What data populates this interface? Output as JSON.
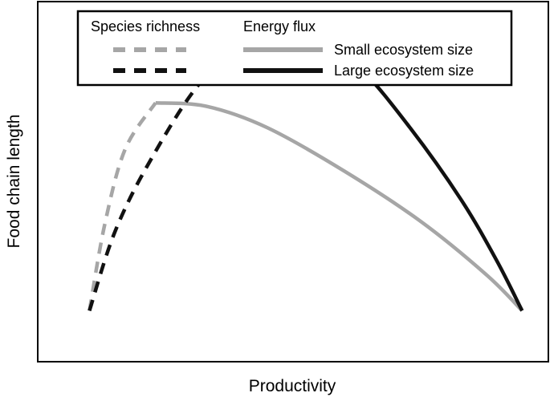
{
  "chart_data": {
    "type": "line",
    "xlabel": "Productivity",
    "ylabel": "Food chain length",
    "x_ticks": "none",
    "y_ticks": "none",
    "grid": false,
    "xlim": [
      0,
      1
    ],
    "ylim": [
      0,
      1
    ],
    "legend": {
      "placement": "top",
      "column_headers": [
        "Species richness",
        "Energy flux"
      ],
      "rows": [
        "Small ecosystem size",
        "Large ecosystem size"
      ]
    },
    "colors": {
      "small": "#a6a6a6",
      "large": "#111111"
    },
    "series": [
      {
        "name": "Small ecosystem size",
        "driver": "Species richness",
        "style": "dashed",
        "color": "#a6a6a6",
        "points": [
          [
            0.1,
            0.14
          ],
          [
            0.13,
            0.38
          ],
          [
            0.17,
            0.59
          ],
          [
            0.23,
            0.72
          ]
        ]
      },
      {
        "name": "Small ecosystem size",
        "driver": "Energy flux",
        "style": "solid",
        "color": "#a6a6a6",
        "points": [
          [
            0.23,
            0.72
          ],
          [
            0.33,
            0.71
          ],
          [
            0.45,
            0.65
          ],
          [
            0.6,
            0.53
          ],
          [
            0.75,
            0.39
          ],
          [
            0.88,
            0.24
          ],
          [
            0.95,
            0.14
          ]
        ]
      },
      {
        "name": "Large ecosystem size",
        "driver": "Species richness",
        "style": "dashed",
        "color": "#111111",
        "points": [
          [
            0.1,
            0.14
          ],
          [
            0.15,
            0.36
          ],
          [
            0.22,
            0.56
          ],
          [
            0.32,
            0.78
          ],
          [
            0.43,
            0.91
          ],
          [
            0.5,
            0.93
          ]
        ]
      },
      {
        "name": "Large ecosystem size",
        "driver": "Energy flux",
        "style": "solid",
        "color": "#111111",
        "points": [
          [
            0.5,
            0.93
          ],
          [
            0.53,
            0.93
          ],
          [
            0.63,
            0.82
          ],
          [
            0.73,
            0.65
          ],
          [
            0.83,
            0.45
          ],
          [
            0.9,
            0.28
          ],
          [
            0.95,
            0.14
          ]
        ]
      }
    ]
  }
}
